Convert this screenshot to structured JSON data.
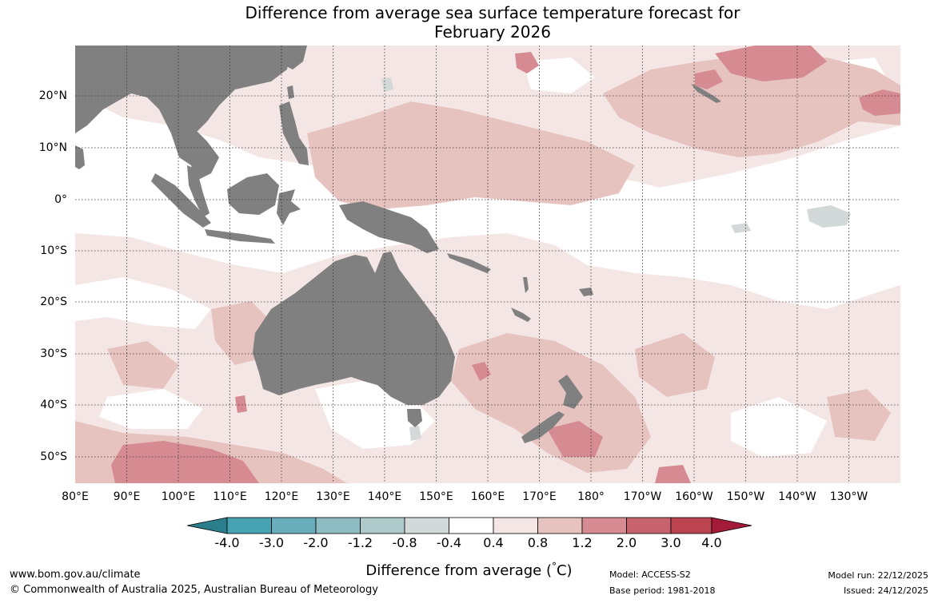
{
  "title": {
    "line1": "Difference from average sea surface temperature forecast for",
    "line2": "February 2026"
  },
  "map": {
    "latitude_labels": [
      "20°N",
      "10°N",
      "0°",
      "10°S",
      "20°S",
      "30°S",
      "40°S",
      "50°S"
    ],
    "longitude_labels": [
      "80°E",
      "90°E",
      "100°E",
      "110°E",
      "120°E",
      "130°E",
      "140°E",
      "150°E",
      "160°E",
      "170°E",
      "180°",
      "170°W",
      "160°W",
      "150°W",
      "140°W",
      "130°W"
    ]
  },
  "legend": {
    "title": "Difference from average (°C)",
    "title_prefix": "Difference from average (",
    "title_degree": "°",
    "title_suffix": "C)",
    "tick_labels": [
      "-4.0",
      "-3.0",
      "-2.0",
      "-1.2",
      "-0.8",
      "-0.4",
      "0.4",
      "0.8",
      "1.2",
      "2.0",
      "3.0",
      "4.0"
    ],
    "colors": [
      "#2b7e8c",
      "#47a2b2",
      "#69aebb",
      "#8fbcc3",
      "#afcacb",
      "#d3d9d9",
      "#ffffff",
      "#f4e6e5",
      "#e7c3c0",
      "#d58b91",
      "#c6636d",
      "#bc4350",
      "#a31b39"
    ]
  },
  "colors": {
    "land": "#808080",
    "neutral": "#ffffff",
    "warm_light": "#f4e6e5",
    "warm_mid": "#e7c3c0",
    "warm_strong": "#d58b91",
    "warm_stronger": "#c6636d",
    "cool_light": "#d3d9d9"
  },
  "footer": {
    "website": "www.bom.gov.au/climate",
    "copyright": "© Commonwealth of Australia 2025, Australian Bureau of Meteorology",
    "model": "Model: ACCESS-S2",
    "base_period": "Base period: 1981-2018",
    "model_run": "Model run: 22/12/2025",
    "issued": "Issued: 24/12/2025"
  }
}
